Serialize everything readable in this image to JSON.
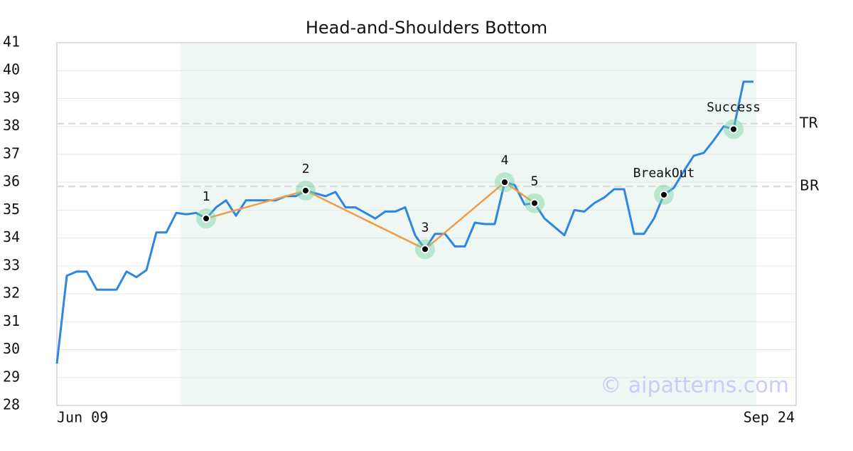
{
  "chart_data": {
    "type": "line",
    "title": "Head-and-Shoulders Bottom",
    "categories": [
      "Jun 09",
      null,
      null,
      null,
      null,
      null,
      null,
      null,
      null,
      null,
      null,
      null,
      null,
      null,
      null,
      null,
      null,
      null,
      null,
      null,
      null,
      null,
      null,
      null,
      null,
      null,
      null,
      null,
      null,
      null,
      null,
      null,
      null,
      null,
      null,
      null,
      null,
      null,
      null,
      null,
      null,
      null,
      null,
      null,
      null,
      null,
      null,
      null,
      null,
      null,
      null,
      null,
      null,
      null,
      null,
      null,
      null,
      null,
      null,
      null,
      null,
      null,
      null,
      null,
      null,
      null,
      null,
      null,
      null,
      null,
      "Sep 24"
    ],
    "series": [
      {
        "color": "#2e86de",
        "values": [
          29.5,
          32.65,
          32.8,
          32.8,
          32.15,
          32.15,
          32.15,
          32.8,
          32.6,
          32.85,
          34.2,
          34.2,
          34.9,
          34.85,
          34.9,
          34.7,
          35.1,
          35.35,
          34.8,
          35.35,
          35.35,
          35.35,
          35.35,
          35.5,
          35.5,
          35.7,
          35.6,
          35.5,
          35.65,
          35.1,
          35.1,
          34.9,
          34.7,
          34.95,
          34.95,
          35.1,
          34.1,
          33.6,
          34.15,
          34.15,
          33.7,
          33.7,
          34.55,
          34.5,
          34.5,
          36.0,
          35.9,
          35.2,
          35.25,
          34.7,
          34.4,
          34.1,
          35.0,
          34.95,
          35.25,
          35.45,
          35.75,
          35.75,
          34.15,
          34.15,
          34.7,
          35.55,
          35.8,
          36.4,
          36.95,
          37.05,
          37.5,
          38.0,
          37.9,
          39.6,
          39.6
        ]
      },
      {
        "color": "#f39c45",
        "line": true,
        "values": [
          null,
          null,
          null,
          null,
          null,
          null,
          null,
          null,
          null,
          null,
          null,
          null,
          null,
          null,
          null,
          34.7,
          null,
          null,
          null,
          null,
          null,
          null,
          null,
          null,
          null,
          35.7,
          null,
          null,
          null,
          null,
          null,
          null,
          null,
          null,
          null,
          null,
          null,
          33.6,
          null,
          null,
          null,
          null,
          null,
          null,
          null,
          36.0,
          null,
          null,
          35.25,
          null,
          null,
          null,
          null,
          null,
          null,
          null,
          null,
          null,
          null,
          null,
          null,
          null,
          null,
          null,
          null,
          null,
          null,
          null,
          null,
          null,
          null
        ],
        "labels": [
          null,
          null,
          null,
          null,
          null,
          null,
          null,
          null,
          null,
          null,
          null,
          null,
          null,
          null,
          null,
          "1",
          null,
          null,
          null,
          null,
          null,
          null,
          null,
          null,
          null,
          "2",
          null,
          null,
          null,
          null,
          null,
          null,
          null,
          null,
          null,
          null,
          null,
          "3",
          null,
          null,
          null,
          null,
          null,
          null,
          null,
          "4",
          null,
          null,
          "5",
          null,
          null,
          null,
          null,
          null,
          null,
          null,
          null,
          null,
          null,
          null,
          null,
          null,
          null,
          null,
          null,
          null,
          null,
          null,
          null,
          null,
          null
        ]
      },
      {
        "color": "#f39c45",
        "line": false,
        "values": [
          null,
          null,
          null,
          null,
          null,
          null,
          null,
          null,
          null,
          null,
          null,
          null,
          null,
          null,
          null,
          null,
          null,
          null,
          null,
          null,
          null,
          null,
          null,
          null,
          null,
          null,
          null,
          null,
          null,
          null,
          null,
          null,
          null,
          null,
          null,
          null,
          null,
          null,
          null,
          null,
          null,
          null,
          null,
          null,
          null,
          null,
          null,
          null,
          null,
          null,
          null,
          null,
          null,
          null,
          null,
          null,
          null,
          null,
          null,
          null,
          null,
          35.55,
          null,
          null,
          null,
          null,
          null,
          null,
          37.9,
          null,
          null
        ],
        "labels": [
          null,
          null,
          null,
          null,
          null,
          null,
          null,
          null,
          null,
          null,
          null,
          null,
          null,
          null,
          null,
          null,
          null,
          null,
          null,
          null,
          null,
          null,
          null,
          null,
          null,
          null,
          null,
          null,
          null,
          null,
          null,
          null,
          null,
          null,
          null,
          null,
          null,
          null,
          null,
          null,
          null,
          null,
          null,
          null,
          null,
          null,
          null,
          null,
          null,
          null,
          null,
          null,
          null,
          null,
          null,
          null,
          null,
          null,
          null,
          null,
          null,
          "BreakOut",
          null,
          null,
          null,
          null,
          null,
          null,
          "Success",
          null,
          null
        ]
      }
    ],
    "levels": [
      {
        "label": "TR",
        "value": 38.1
      },
      {
        "label": "BR",
        "value": 35.85
      }
    ],
    "highlight_range": [
      13,
      70
    ],
    "ylim": [
      28,
      41
    ],
    "yticks": [
      28,
      29,
      30,
      31,
      32,
      33,
      34,
      35,
      36,
      37,
      38,
      39,
      40,
      41
    ],
    "grid": true,
    "watermark": "© aipatterns.com"
  }
}
